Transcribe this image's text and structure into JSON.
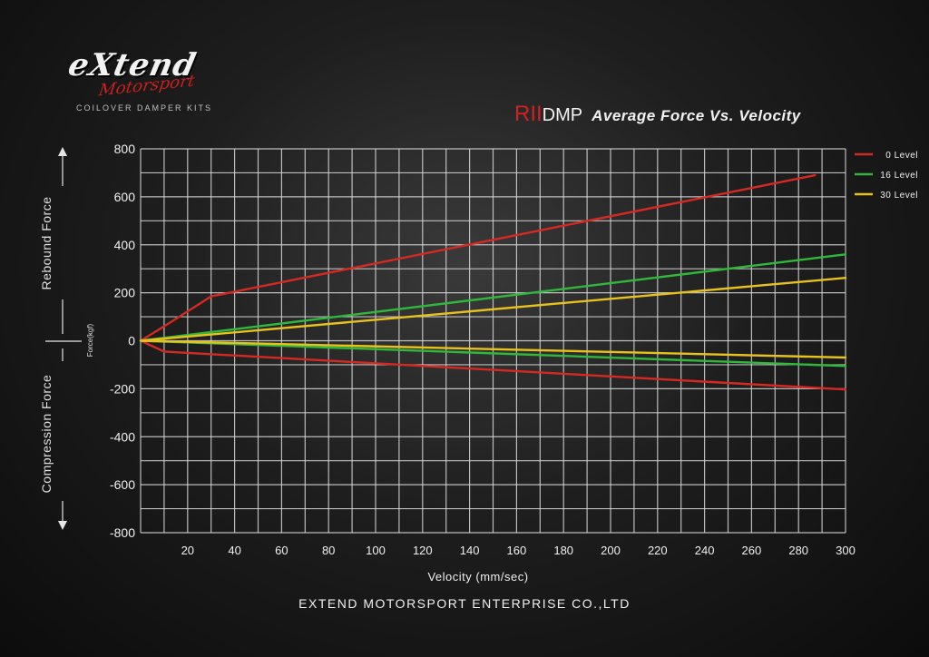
{
  "brand": {
    "name": "eXtend",
    "sub": "Motorsport",
    "tagline": "COILOVER DAMPER KITS"
  },
  "title": {
    "model": "RII",
    "type": "DMP",
    "rest": "Average Force Vs. Velocity"
  },
  "side_labels": {
    "rebound": "Rebound Force",
    "compression": "Compression Force"
  },
  "footer": "EXTEND MOTORSPORT ENTERPRISE CO.,LTD",
  "colors": {
    "red": "#d42a22",
    "green": "#2fb83c",
    "yellow": "#e8c21c",
    "grid": "#d8d8d8"
  },
  "chart_data": {
    "type": "line",
    "title": "Average Force Vs. Velocity",
    "xlabel": "Velocity (mm/sec)",
    "ylabel": "Force(kgf)",
    "xlim": [
      0,
      300
    ],
    "ylim": [
      -800,
      800
    ],
    "x_ticks": [
      20,
      40,
      60,
      80,
      100,
      120,
      140,
      160,
      180,
      200,
      220,
      240,
      260,
      280,
      300
    ],
    "y_ticks": [
      800,
      600,
      400,
      200,
      0,
      -200,
      -400,
      -600,
      -800
    ],
    "grid": true,
    "legend_position": "top-right",
    "series": [
      {
        "name": "0 Level",
        "color": "#d42a22",
        "rebound": [
          [
            0,
            0
          ],
          [
            10,
            60
          ],
          [
            30,
            185
          ],
          [
            287,
            690
          ]
        ],
        "compression": [
          [
            0,
            0
          ],
          [
            10,
            -45
          ],
          [
            300,
            -203
          ]
        ]
      },
      {
        "name": "16 Level",
        "color": "#2fb83c",
        "rebound": [
          [
            0,
            0
          ],
          [
            300,
            360
          ]
        ],
        "compression": [
          [
            0,
            0
          ],
          [
            300,
            -105
          ]
        ]
      },
      {
        "name": "30 Level",
        "color": "#e8c21c",
        "rebound": [
          [
            0,
            0
          ],
          [
            300,
            262
          ]
        ],
        "compression": [
          [
            0,
            0
          ],
          [
            300,
            -70
          ]
        ]
      }
    ]
  }
}
